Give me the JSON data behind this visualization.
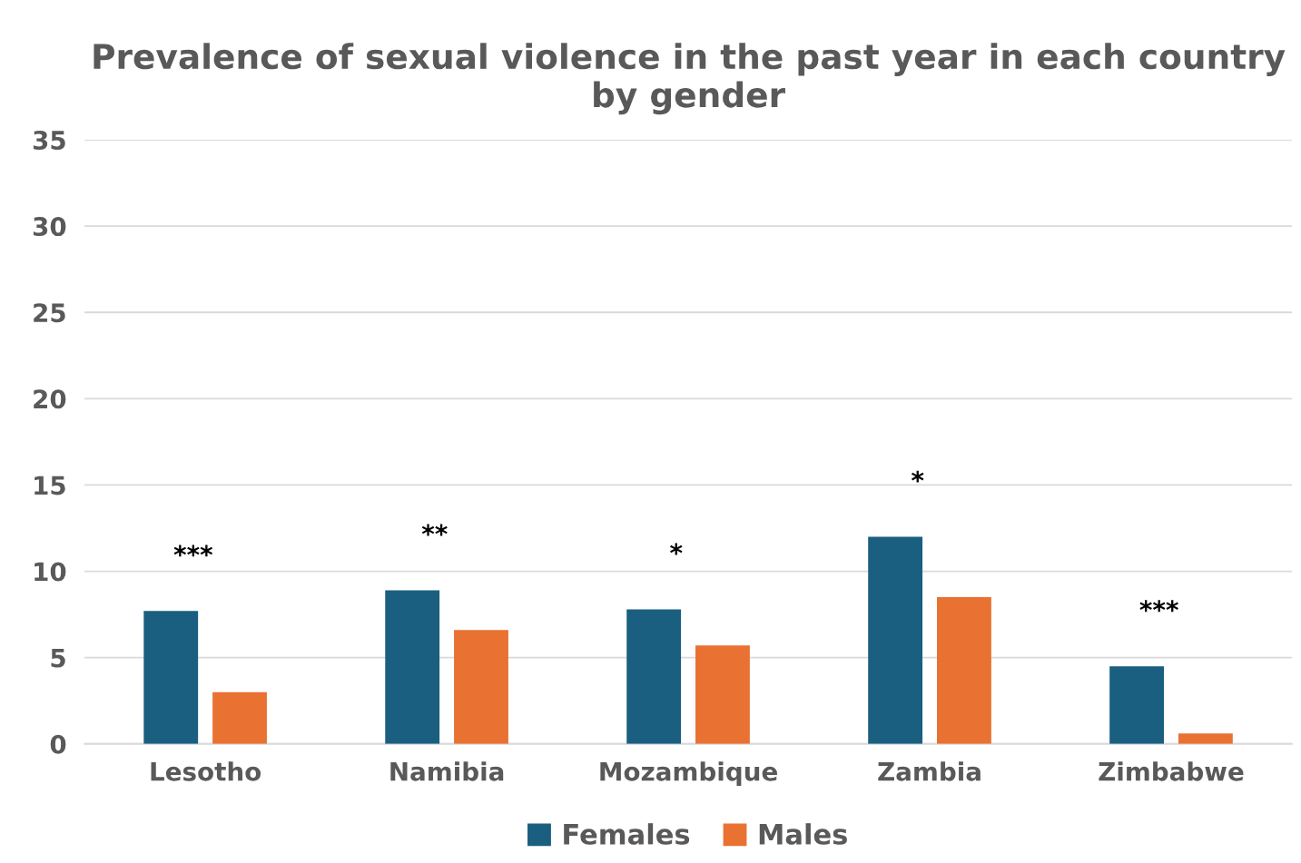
{
  "chart_data": {
    "type": "bar",
    "title": "Prevalence of sexual violence in the past year in each country by gender",
    "categories": [
      "Lesotho",
      "Namibia",
      "Mozambique",
      "Zambia",
      "Zimbabwe"
    ],
    "series": [
      {
        "name": "Females",
        "color": "#1a5f80",
        "values": [
          7.7,
          8.9,
          7.8,
          12.0,
          4.5
        ]
      },
      {
        "name": "Males",
        "color": "#e97132",
        "values": [
          3.0,
          6.6,
          5.7,
          8.5,
          0.6
        ]
      }
    ],
    "ylim": [
      0,
      35
    ],
    "yticks": [
      0,
      5,
      10,
      15,
      20,
      25,
      30,
      35
    ],
    "grid": "y",
    "legend": "bottom",
    "annotations": [
      "***",
      "**",
      "*",
      "*",
      "***"
    ]
  }
}
